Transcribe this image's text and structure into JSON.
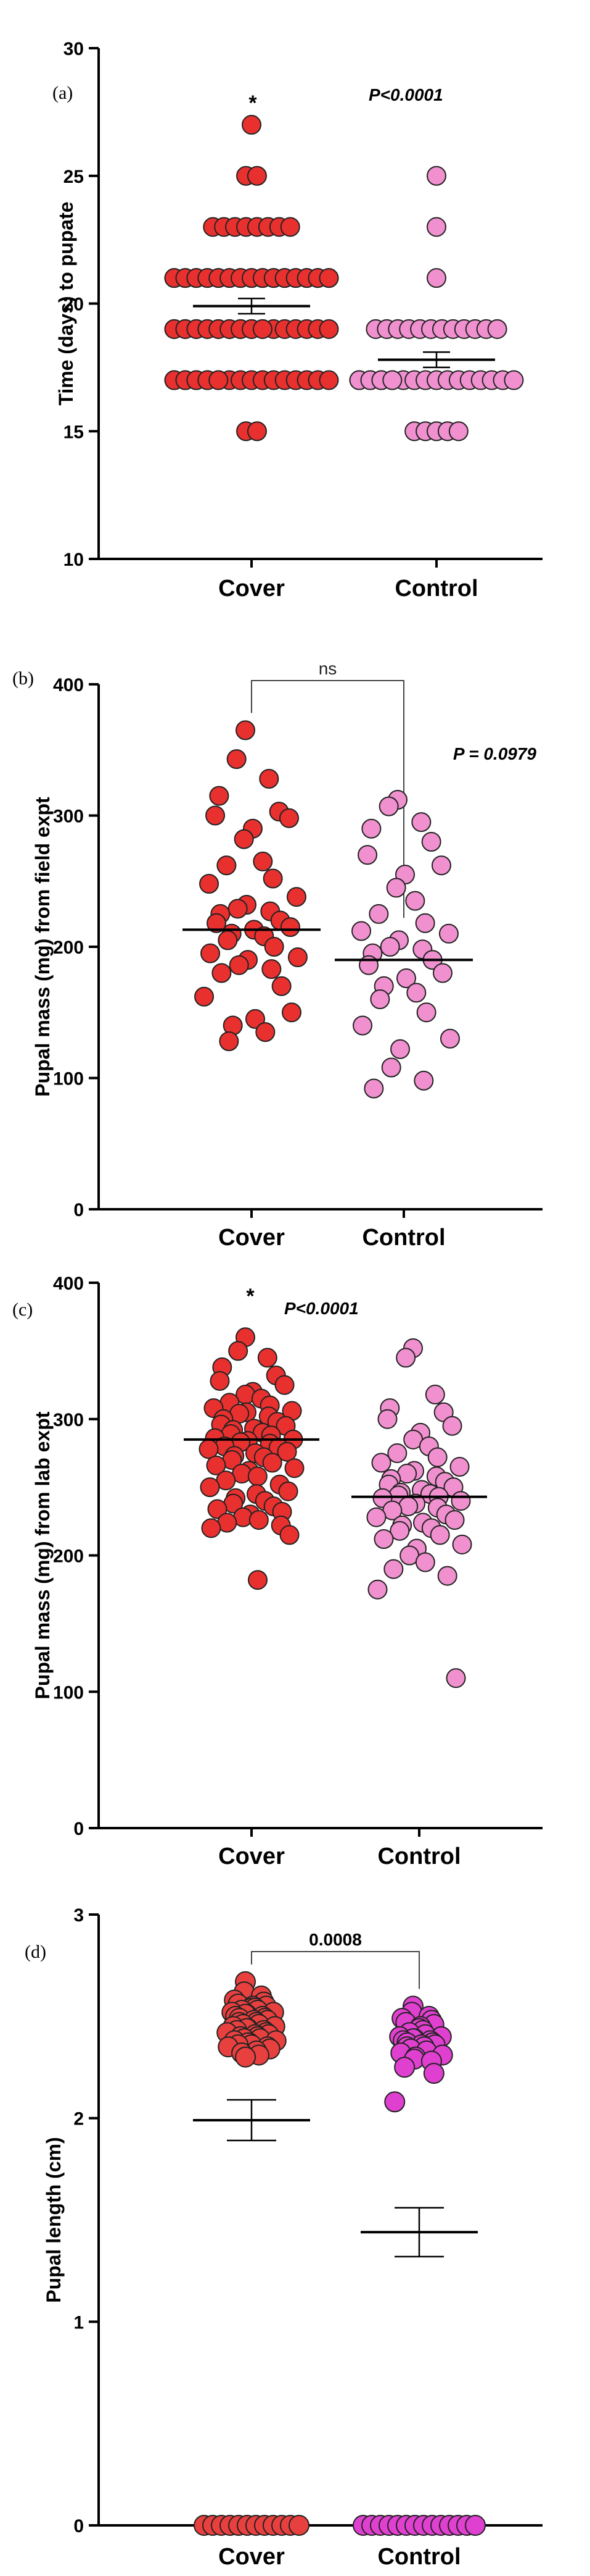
{
  "chart_data": [
    {
      "panel_label": "(a)",
      "type": "scatter",
      "ylabel": "Time (days) to pupate",
      "ylim": [
        10,
        30
      ],
      "yticks": [
        10,
        15,
        20,
        25,
        30
      ],
      "categories": [
        "Cover",
        "Control"
      ],
      "annotation_star": "*",
      "annotation_p": "P<0.0001",
      "series": [
        {
          "name": "Cover",
          "color": "#e8302f",
          "mean": 19.9,
          "sem": 0.3,
          "values": [
            15,
            15,
            17,
            17,
            17,
            17,
            17,
            17,
            17,
            17,
            17,
            17,
            17,
            17,
            17,
            17,
            17,
            17,
            17,
            17,
            17,
            17,
            19,
            19,
            19,
            19,
            19,
            19,
            19,
            19,
            19,
            19,
            19,
            19,
            19,
            19,
            19,
            19,
            19,
            19,
            19,
            19,
            19,
            19,
            19,
            19,
            21,
            21,
            21,
            21,
            21,
            21,
            21,
            21,
            21,
            21,
            21,
            21,
            21,
            21,
            21,
            21,
            21,
            21,
            21,
            21,
            21,
            21,
            21,
            21,
            21,
            21,
            21,
            21,
            21,
            21,
            23,
            23,
            23,
            23,
            23,
            23,
            23,
            23,
            25,
            25,
            27
          ]
        },
        {
          "name": "Control",
          "color": "#f090cf",
          "mean": 17.8,
          "sem": 0.3,
          "values": [
            15,
            15,
            15,
            15,
            15,
            17,
            17,
            17,
            17,
            17,
            17,
            17,
            17,
            17,
            17,
            17,
            17,
            17,
            17,
            17,
            17,
            17,
            17,
            17,
            19,
            19,
            19,
            19,
            19,
            19,
            19,
            19,
            19,
            19,
            19,
            19,
            21,
            23,
            25
          ]
        }
      ]
    },
    {
      "panel_label": "(b)",
      "type": "scatter",
      "ylabel": "Pupal mass (mg) from field expt",
      "ylim": [
        0,
        400
      ],
      "yticks": [
        0,
        100,
        200,
        300,
        400
      ],
      "categories": [
        "Cover",
        "Control"
      ],
      "bracket_label": "ns",
      "annotation_p": "P = 0.0979",
      "series": [
        {
          "name": "Cover",
          "color": "#e8302f",
          "mean": 213,
          "values": [
            365,
            343,
            328,
            315,
            303,
            300,
            298,
            290,
            282,
            265,
            262,
            252,
            248,
            238,
            232,
            229,
            227,
            225,
            220,
            218,
            215,
            213,
            210,
            208,
            205,
            200,
            195,
            192,
            190,
            186,
            183,
            180,
            170,
            162,
            150,
            145,
            140,
            135,
            128
          ]
        },
        {
          "name": "Control",
          "color": "#f090cf",
          "mean": 190,
          "values": [
            312,
            307,
            295,
            290,
            280,
            270,
            262,
            255,
            245,
            235,
            225,
            218,
            212,
            210,
            205,
            200,
            198,
            195,
            190,
            186,
            180,
            176,
            170,
            165,
            160,
            150,
            140,
            130,
            122,
            108,
            98,
            92
          ]
        }
      ]
    },
    {
      "panel_label": "(c)",
      "type": "scatter",
      "ylabel": "Pupal mass (mg) from lab expt",
      "ylim": [
        0,
        400
      ],
      "yticks": [
        0,
        100,
        200,
        300,
        400
      ],
      "categories": [
        "Cover",
        "Control"
      ],
      "annotation_star": "*",
      "annotation_p": "P<0.0001",
      "series": [
        {
          "name": "Cover",
          "color": "#e8302f",
          "mean": 285,
          "values": [
            360,
            350,
            345,
            338,
            332,
            328,
            325,
            320,
            318,
            315,
            312,
            310,
            308,
            306,
            305,
            304,
            302,
            300,
            298,
            296,
            295,
            293,
            292,
            290,
            289,
            288,
            286,
            285,
            284,
            283,
            282,
            280,
            279,
            278,
            276,
            275,
            273,
            272,
            270,
            268,
            266,
            264,
            262,
            260,
            258,
            255,
            252,
            250,
            247,
            245,
            242,
            240,
            238,
            236,
            234,
            232,
            230,
            228,
            226,
            224,
            222,
            220,
            215,
            182
          ]
        },
        {
          "name": "Control",
          "color": "#f090cf",
          "mean": 243,
          "values": [
            352,
            345,
            318,
            308,
            305,
            300,
            295,
            290,
            285,
            280,
            275,
            272,
            268,
            265,
            262,
            260,
            258,
            256,
            254,
            252,
            250,
            248,
            246,
            245,
            244,
            243,
            242,
            240,
            238,
            236,
            235,
            233,
            230,
            228,
            226,
            224,
            222,
            220,
            218,
            215,
            212,
            208,
            205,
            200,
            195,
            190,
            185,
            175,
            110
          ]
        }
      ]
    },
    {
      "panel_label": "(d)",
      "type": "scatter",
      "ylabel": "Pupal length (cm)",
      "ylim": [
        0,
        3
      ],
      "yticks": [
        0,
        1,
        2,
        3
      ],
      "categories": [
        "Cover",
        "Control"
      ],
      "bracket_label": "0.0008",
      "series": [
        {
          "name": "Cover",
          "color": "#e8403f",
          "mean": 1.99,
          "sem": 0.1,
          "zero_count": 12,
          "values": [
            2.67,
            2.62,
            2.6,
            2.58,
            2.57,
            2.56,
            2.55,
            2.55,
            2.54,
            2.54,
            2.53,
            2.53,
            2.52,
            2.52,
            2.51,
            2.51,
            2.5,
            2.5,
            2.49,
            2.49,
            2.48,
            2.48,
            2.47,
            2.47,
            2.46,
            2.46,
            2.45,
            2.45,
            2.44,
            2.44,
            2.43,
            2.43,
            2.42,
            2.42,
            2.41,
            2.41,
            2.4,
            2.4,
            2.39,
            2.39,
            2.38,
            2.38,
            2.37,
            2.37,
            2.36,
            2.36,
            2.35,
            2.35,
            2.34,
            2.33,
            2.32,
            2.31,
            2.3
          ]
        },
        {
          "name": "Control",
          "color": "#e040d0",
          "mean": 1.44,
          "sem": 0.12,
          "zero_count": 14,
          "values": [
            2.55,
            2.52,
            2.5,
            2.49,
            2.48,
            2.47,
            2.46,
            2.45,
            2.44,
            2.43,
            2.42,
            2.41,
            2.4,
            2.4,
            2.39,
            2.39,
            2.38,
            2.38,
            2.37,
            2.37,
            2.36,
            2.36,
            2.35,
            2.35,
            2.34,
            2.33,
            2.32,
            2.31,
            2.3,
            2.29,
            2.28,
            2.25,
            2.22,
            2.08
          ]
        }
      ]
    }
  ]
}
